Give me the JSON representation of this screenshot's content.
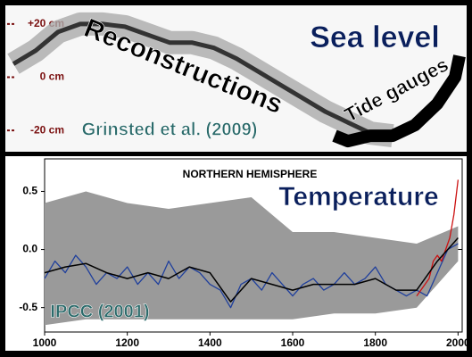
{
  "chart_data": [
    {
      "type": "line",
      "title": "Sea level",
      "annotations": [
        "Reconstructions",
        "Tide gauges",
        "Grinsted et al. (2009)"
      ],
      "xlim": [
        1000,
        2000
      ],
      "ylim": [
        -28,
        27
      ],
      "yticks": [
        {
          "value": 20,
          "label": "+20 cm"
        },
        {
          "value": 0,
          "label": "0 cm"
        },
        {
          "value": -20,
          "label": "-20 cm"
        }
      ],
      "series": [
        {
          "color": "#333333",
          "x": [
            1000,
            1050,
            1100,
            1150,
            1200,
            1250,
            1300,
            1350,
            1400,
            1450,
            1500,
            1550,
            1600,
            1650,
            1700,
            1750,
            1800,
            1850
          ],
          "values": [
            5,
            10,
            17,
            20,
            20,
            19,
            16,
            13,
            13,
            11,
            7,
            2,
            -3,
            -8,
            -13,
            -17,
            -21,
            -22
          ]
        },
        {
          "color": "#000000",
          "x": [
            1720,
            1750,
            1800,
            1850,
            1900,
            1950,
            1990,
            2000
          ],
          "values": [
            -22,
            -24,
            -22,
            -22,
            -18,
            -10,
            0,
            8
          ]
        }
      ]
    },
    {
      "type": "line",
      "title": "Temperature",
      "subtitle": "NORTHERN HEMISPHERE",
      "annotations": [
        "IPCC (2001)"
      ],
      "xlim": [
        1000,
        2010
      ],
      "ylim": [
        -0.71,
        0.78
      ],
      "xticks": [
        1000,
        1200,
        1400,
        1600,
        1800,
        {
          "value": 2000,
          "label": "2000"
        }
      ],
      "yticks": [
        0.5,
        {
          "value": 0,
          "label": "0.0"
        },
        -0.5
      ],
      "series": [
        {
          "kind": "band",
          "color": "#9a9a9a",
          "x": [
            1000,
            1100,
            1200,
            1300,
            1400,
            1500,
            1600,
            1700,
            1800,
            1900,
            2000
          ],
          "values": [
            0.4,
            0.5,
            0.4,
            0.35,
            0.4,
            0.45,
            0.15,
            0.15,
            0.1,
            0.05,
            0.2
          ],
          "lower": [
            -0.65,
            -0.6,
            -0.6,
            -0.6,
            -0.6,
            -0.6,
            -0.6,
            -0.55,
            -0.55,
            -0.5,
            -0.1
          ]
        },
        {
          "color": "#1f3f9c",
          "x": [
            1000,
            1025,
            1050,
            1075,
            1100,
            1125,
            1150,
            1175,
            1200,
            1225,
            1250,
            1275,
            1300,
            1325,
            1350,
            1375,
            1400,
            1425,
            1450,
            1475,
            1500,
            1525,
            1550,
            1575,
            1600,
            1625,
            1650,
            1675,
            1700,
            1725,
            1750,
            1775,
            1800,
            1825,
            1850,
            1875,
            1900,
            1925,
            1950,
            1975,
            2000
          ],
          "values": [
            -0.25,
            -0.1,
            -0.2,
            -0.05,
            -0.15,
            -0.3,
            -0.2,
            -0.25,
            -0.15,
            -0.3,
            -0.2,
            -0.3,
            -0.1,
            -0.25,
            -0.15,
            -0.2,
            -0.3,
            -0.35,
            -0.5,
            -0.3,
            -0.25,
            -0.35,
            -0.2,
            -0.3,
            -0.4,
            -0.3,
            -0.25,
            -0.35,
            -0.3,
            -0.2,
            -0.3,
            -0.25,
            -0.15,
            -0.3,
            -0.35,
            -0.4,
            -0.35,
            -0.4,
            -0.2,
            0.0,
            0.05
          ]
        },
        {
          "color": "#cc1111",
          "x": [
            1900,
            1910,
            1920,
            1930,
            1940,
            1950,
            1960,
            1970,
            1980,
            1990,
            2000
          ],
          "values": [
            -0.4,
            -0.35,
            -0.3,
            -0.25,
            -0.1,
            -0.05,
            -0.1,
            0.0,
            0.1,
            0.3,
            0.6
          ]
        },
        {
          "color": "#000000",
          "x": [
            1000,
            1050,
            1100,
            1150,
            1200,
            1250,
            1300,
            1350,
            1400,
            1450,
            1500,
            1550,
            1600,
            1650,
            1700,
            1750,
            1800,
            1850,
            1900,
            1950,
            2000
          ],
          "values": [
            -0.2,
            -0.15,
            -0.12,
            -0.2,
            -0.25,
            -0.2,
            -0.25,
            -0.15,
            -0.2,
            -0.45,
            -0.25,
            -0.3,
            -0.35,
            -0.3,
            -0.3,
            -0.3,
            -0.25,
            -0.35,
            -0.35,
            -0.1,
            0.1
          ]
        }
      ]
    }
  ]
}
